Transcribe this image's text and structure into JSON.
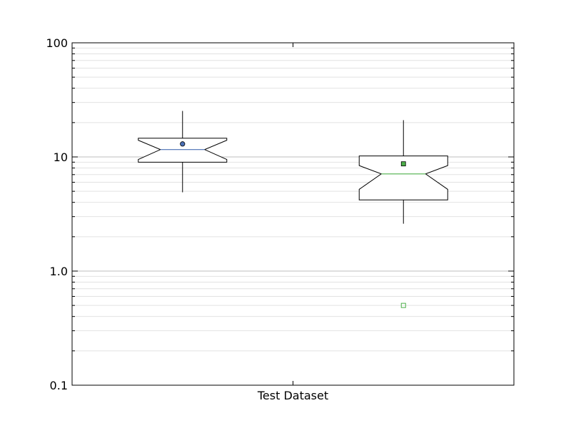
{
  "chart_data": {
    "type": "boxplot",
    "notched": true,
    "y_scale": "log",
    "ylim": [
      0.1,
      100
    ],
    "y_ticks": [
      {
        "value": 0.1,
        "label": "0.1"
      },
      {
        "value": 1,
        "label": "1.0"
      },
      {
        "value": 10,
        "label": "10"
      },
      {
        "value": 100,
        "label": "100"
      }
    ],
    "grid": {
      "major": true,
      "minor": true
    },
    "xlabel": "Test Dataset",
    "series": [
      {
        "color": "#4a6fb5",
        "mean_marker": "circle",
        "whisker_low": 4.9,
        "q1": 9.0,
        "median": 11.6,
        "q3": 14.6,
        "whisker_high": 25.3,
        "notch_low": 9.5,
        "notch_high": 14.0,
        "mean": 13.0,
        "outliers": []
      },
      {
        "color": "#4daf4a",
        "mean_marker": "square",
        "whisker_low": 2.6,
        "q1": 4.2,
        "median": 7.1,
        "q3": 10.2,
        "whisker_high": 21.0,
        "notch_low": 5.2,
        "notch_high": 8.4,
        "mean": 8.7,
        "outliers": [
          0.5
        ]
      }
    ]
  }
}
